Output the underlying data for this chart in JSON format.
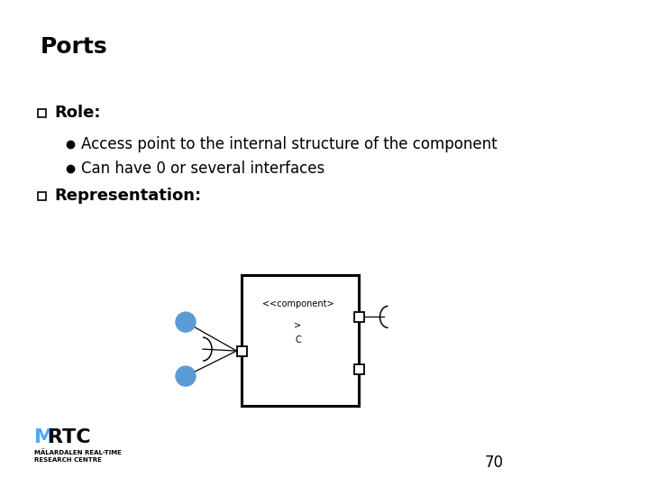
{
  "title": "Ports",
  "bg_color": "#ffffff",
  "text_color": "#000000",
  "role_label": "Role:",
  "bullet1": "Access point to the internal structure of the component",
  "bullet2": "Can have 0 or several interfaces",
  "rep_label": "Representation:",
  "page_number": "70",
  "comp_label1": "<<component>",
  "comp_label2": ">",
  "comp_label3": "C",
  "blue_circle_color": "#5b9bd5",
  "title_fontsize": 18,
  "heading_fontsize": 13,
  "body_fontsize": 12,
  "small_fontsize": 7,
  "mrtc_fontsize": 16,
  "mrtc_sub_fontsize": 5,
  "mrtc_blue": "#4da6ff"
}
